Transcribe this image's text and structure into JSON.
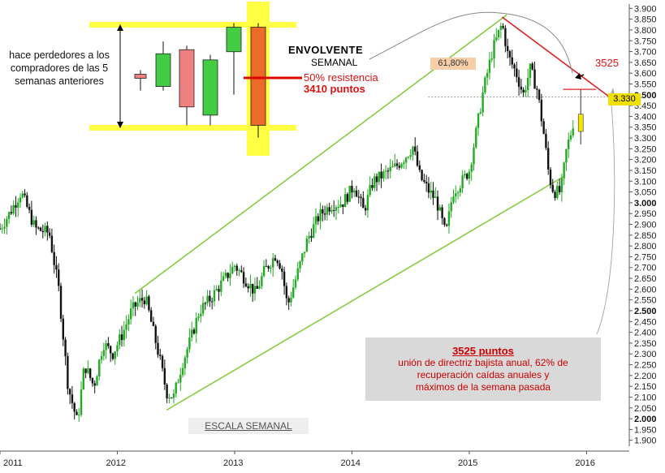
{
  "chart_data": {
    "type": "candlestick",
    "timeframe": "weekly",
    "x_ticks": [
      "2011",
      "2012",
      "2013",
      "2014",
      "2015",
      "2016"
    ],
    "y_ticks": [
      "3.900",
      "3.850",
      "3.800",
      "3.750",
      "3.700",
      "3.650",
      "3.600",
      "3.550",
      "3.500",
      "3.450",
      "3.400",
      "3.350",
      "3.300",
      "3.250",
      "3.200",
      "3.150",
      "3.100",
      "3.050",
      "3.000",
      "2.950",
      "2.900",
      "2.850",
      "2.800",
      "2.750",
      "2.700",
      "2.650",
      "2.600",
      "2.550",
      "2.500",
      "2.450",
      "2.400",
      "2.350",
      "2.300",
      "2.250",
      "2.200",
      "2.150",
      "2.100",
      "2.050",
      "2.000",
      "1.950",
      "1.900"
    ],
    "bold_y_ticks": [
      "3.500",
      "3.000",
      "2.500",
      "2.000"
    ],
    "ylim": [
      1880,
      3920
    ],
    "xlim": [
      2011.0,
      2016.35
    ],
    "price_path": [
      [
        2011.0,
        2880
      ],
      [
        2011.08,
        2950
      ],
      [
        2011.18,
        3050
      ],
      [
        2011.3,
        2880
      ],
      [
        2011.42,
        2860
      ],
      [
        2011.5,
        2600
      ],
      [
        2011.58,
        2150
      ],
      [
        2011.66,
        1980
      ],
      [
        2011.72,
        2250
      ],
      [
        2011.8,
        2150
      ],
      [
        2011.88,
        2350
      ],
      [
        2011.96,
        2300
      ],
      [
        2012.05,
        2400
      ],
      [
        2012.12,
        2500
      ],
      [
        2012.18,
        2540
      ],
      [
        2012.24,
        2560
      ],
      [
        2012.3,
        2420
      ],
      [
        2012.36,
        2280
      ],
      [
        2012.42,
        2120
      ],
      [
        2012.48,
        2100
      ],
      [
        2012.55,
        2250
      ],
      [
        2012.62,
        2360
      ],
      [
        2012.7,
        2500
      ],
      [
        2012.8,
        2560
      ],
      [
        2012.92,
        2650
      ],
      [
        2013.0,
        2710
      ],
      [
        2013.1,
        2640
      ],
      [
        2013.18,
        2580
      ],
      [
        2013.25,
        2680
      ],
      [
        2013.35,
        2760
      ],
      [
        2013.4,
        2700
      ],
      [
        2013.45,
        2520
      ],
      [
        2013.55,
        2700
      ],
      [
        2013.62,
        2830
      ],
      [
        2013.72,
        2940
      ],
      [
        2013.82,
        2990
      ],
      [
        2013.92,
        3000
      ],
      [
        2014.02,
        3080
      ],
      [
        2014.1,
        2960
      ],
      [
        2014.18,
        3100
      ],
      [
        2014.3,
        3140
      ],
      [
        2014.38,
        3170
      ],
      [
        2014.45,
        3210
      ],
      [
        2014.52,
        3260
      ],
      [
        2014.58,
        3120
      ],
      [
        2014.66,
        3050
      ],
      [
        2014.72,
        3010
      ],
      [
        2014.8,
        2850
      ],
      [
        2014.86,
        3050
      ],
      [
        2014.94,
        3100
      ],
      [
        2015.0,
        3150
      ],
      [
        2015.05,
        3300
      ],
      [
        2015.12,
        3520
      ],
      [
        2015.2,
        3710
      ],
      [
        2015.28,
        3830
      ],
      [
        2015.33,
        3680
      ],
      [
        2015.4,
        3600
      ],
      [
        2015.46,
        3500
      ],
      [
        2015.52,
        3620
      ],
      [
        2015.58,
        3520
      ],
      [
        2015.64,
        3300
      ],
      [
        2015.68,
        3120
      ],
      [
        2015.72,
        3050
      ],
      [
        2015.78,
        3050
      ],
      [
        2015.83,
        3250
      ],
      [
        2015.88,
        3350
      ],
      [
        2015.92,
        3500
      ]
    ],
    "last_candle": {
      "open": 3410,
      "close": 3330,
      "high": 3525,
      "low": 3270
    },
    "upper_channel": [
      [
        2012.15,
        2580
      ],
      [
        2015.32,
        3870
      ]
    ],
    "lower_channel": [
      [
        2012.42,
        2040
      ],
      [
        2015.8,
        3120
      ]
    ],
    "downtrend_line": [
      [
        2015.28,
        3860
      ],
      [
        2016.22,
        3480
      ]
    ],
    "fib_level": 3490,
    "resistance_level": 3525,
    "last_price": 3330
  },
  "annotations": {
    "pattern_note": "hace perdedores a los compradores de las 5 semanas anteriores",
    "envolvente_title": "ENVOLVENTE",
    "envolvente_sub": "SEMANAL",
    "resist_pct": "50% resistencia",
    "resist_pts": "3410 puntos",
    "fib_label": "61,80%",
    "level_label": "3525",
    "last_price_label": "3.330",
    "info_title": "3525 puntos",
    "info_lines": [
      "unión de directriz bajista anual, 62% de",
      "recuperación caídas anuales y",
      "máximos de la semana pasada"
    ],
    "scale_label": "ESCALA SEMANAL"
  },
  "inset_candles": [
    {
      "open": 0.52,
      "close": 0.48,
      "high": 0.56,
      "low": 0.36,
      "color": "#f08080"
    },
    {
      "open": 0.4,
      "close": 0.72,
      "high": 0.84,
      "low": 0.36,
      "color": "#44cc44"
    },
    {
      "open": 0.76,
      "close": 0.2,
      "high": 0.8,
      "low": 0.02,
      "color": "#f08080"
    },
    {
      "open": 0.12,
      "close": 0.66,
      "high": 0.71,
      "low": 0.02,
      "color": "#44cc44"
    },
    {
      "open": 0.74,
      "close": 0.98,
      "high": 1.02,
      "low": 0.32,
      "color": "#44cc44"
    },
    {
      "open": 0.98,
      "close": 0.02,
      "high": 1.02,
      "low": -0.1,
      "color": "#ee6a2a"
    }
  ],
  "colors": {
    "up_candle": "#22aa22",
    "down_candle": "#111111",
    "channel": "#88cc44",
    "trendline": "#e02020",
    "yellow_band": "#ffff44",
    "highlight": "#f5e600"
  }
}
